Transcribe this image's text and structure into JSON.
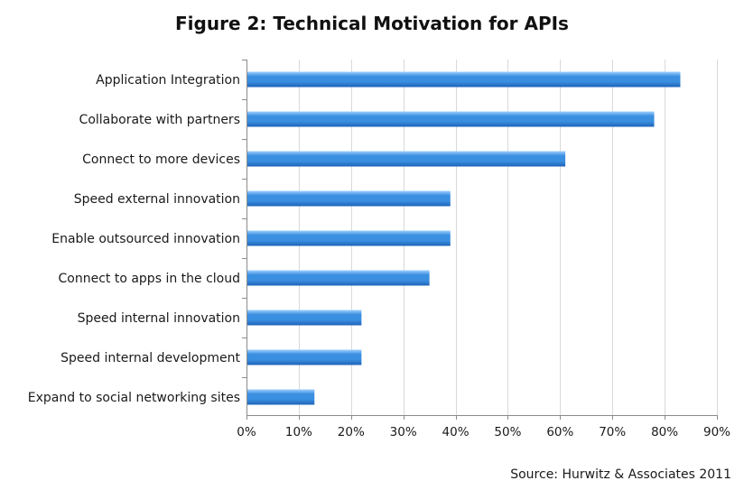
{
  "chart_data": {
    "type": "bar",
    "orientation": "horizontal",
    "title": "Figure 2:  Technical Motivation for APIs",
    "categories": [
      "Application Integration",
      "Collaborate with partners",
      "Connect to more devices",
      "Speed external innovation",
      "Enable outsourced innovation",
      "Connect to apps in the cloud",
      "Speed internal innovation",
      "Speed internal development",
      "Expand to social networking sites"
    ],
    "values": [
      83,
      78,
      61,
      39,
      39,
      35,
      22,
      22,
      13
    ],
    "xlabel": "",
    "ylabel": "",
    "xlim": [
      0,
      90
    ],
    "xticks": [
      0,
      10,
      20,
      30,
      40,
      50,
      60,
      70,
      80,
      90
    ],
    "xtick_labels": [
      "0%",
      "10%",
      "20%",
      "30%",
      "40%",
      "50%",
      "60%",
      "70%",
      "80%",
      "90%"
    ],
    "grid": "vertical",
    "legend": "none",
    "bar_color": "#3a8fe0",
    "bar_highlight": "#9fd0ff",
    "bar_shadow": "#1e63b8",
    "grid_color": "#d9d9d9",
    "source": "Source: Hurwitz & Associates 2011"
  }
}
